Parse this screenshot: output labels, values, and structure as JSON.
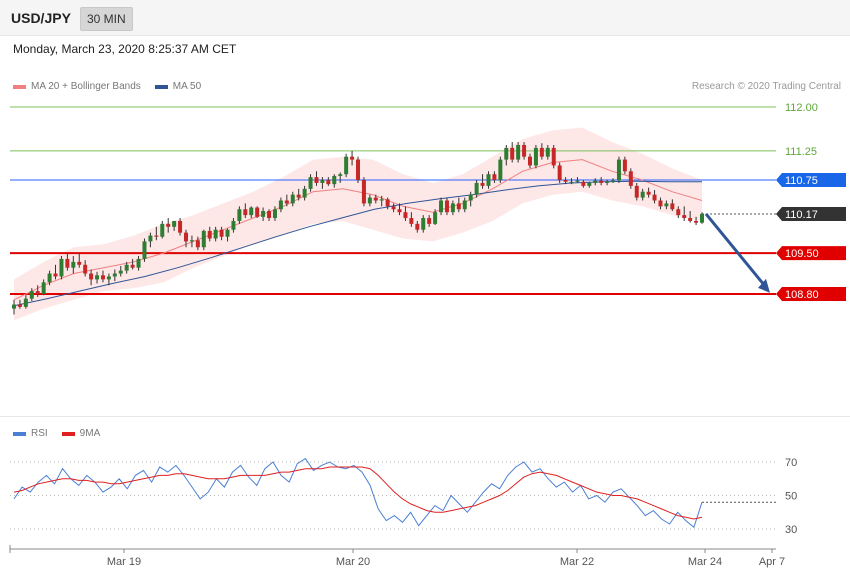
{
  "header": {
    "symbol": "USD/JPY",
    "timeframe": "30 MIN",
    "datetime": "Monday, March 23, 2020 8:25:37 AM CET",
    "credit": "Research © 2020 Trading Central"
  },
  "legend": {
    "main": [
      {
        "label": "MA 20 + Bollinger Bands",
        "color": "#f08080"
      },
      {
        "label": "MA 50",
        "color": "#2f5597"
      }
    ],
    "rsi": [
      {
        "label": "RSI",
        "color": "#4a7fd4"
      },
      {
        "label": "9MA",
        "color": "#e02020"
      }
    ]
  },
  "colors": {
    "up": "#2e7d32",
    "down": "#c62828",
    "resistance": "#e00000",
    "target_line": "#7cc05a",
    "ma50": "#2f5597",
    "ma20": "#f08080",
    "band": "#fde3e3",
    "arrow": "#2f5597",
    "last_price_bg": "#333333",
    "pivot_bg": "#1a66e8"
  },
  "chart_data": [
    {
      "type": "line",
      "title": "USD/JPY 30 MIN",
      "ylim": [
        107.85,
        112.2
      ],
      "x_ticks": [
        "Mar 19",
        "Mar 20",
        "Mar 22",
        "Mar 24",
        "Apr 7"
      ],
      "candles_ohlc": [
        [
          108.55,
          108.7,
          108.45,
          108.62
        ],
        [
          108.62,
          108.7,
          108.55,
          108.58
        ],
        [
          108.58,
          108.78,
          108.55,
          108.72
        ],
        [
          108.72,
          108.9,
          108.68,
          108.85
        ],
        [
          108.85,
          108.95,
          108.75,
          108.8
        ],
        [
          108.8,
          109.05,
          108.78,
          109.0
        ],
        [
          109.0,
          109.2,
          108.95,
          109.15
        ],
        [
          109.15,
          109.3,
          109.05,
          109.1
        ],
        [
          109.1,
          109.45,
          109.05,
          109.4
        ],
        [
          109.4,
          109.5,
          109.2,
          109.25
        ],
        [
          109.25,
          109.45,
          109.15,
          109.35
        ],
        [
          109.35,
          109.5,
          109.25,
          109.3
        ],
        [
          109.3,
          109.38,
          109.1,
          109.15
        ],
        [
          109.15,
          109.22,
          108.95,
          109.05
        ],
        [
          109.05,
          109.18,
          108.98,
          109.12
        ],
        [
          109.12,
          109.2,
          109.0,
          109.05
        ],
        [
          109.05,
          109.15,
          108.95,
          109.1
        ],
        [
          109.1,
          109.22,
          109.02,
          109.15
        ],
        [
          109.15,
          109.28,
          109.1,
          109.2
        ],
        [
          109.2,
          109.35,
          109.15,
          109.3
        ],
        [
          109.3,
          109.4,
          109.22,
          109.25
        ],
        [
          109.25,
          109.45,
          109.2,
          109.4
        ],
        [
          109.4,
          109.75,
          109.35,
          109.7
        ],
        [
          109.7,
          109.85,
          109.6,
          109.8
        ],
        [
          109.8,
          109.95,
          109.72,
          109.78
        ],
        [
          109.78,
          110.05,
          109.75,
          110.0
        ],
        [
          110.0,
          110.1,
          109.85,
          109.95
        ],
        [
          109.95,
          110.05,
          109.88,
          110.05
        ],
        [
          110.05,
          110.1,
          109.8,
          109.85
        ],
        [
          109.85,
          109.9,
          109.6,
          109.7
        ],
        [
          109.7,
          109.8,
          109.6,
          109.72
        ],
        [
          109.72,
          109.78,
          109.55,
          109.6
        ],
        [
          109.6,
          109.9,
          109.55,
          109.88
        ],
        [
          109.88,
          109.95,
          109.7,
          109.75
        ],
        [
          109.75,
          109.95,
          109.7,
          109.9
        ],
        [
          109.9,
          109.95,
          109.72,
          109.78
        ],
        [
          109.78,
          109.92,
          109.7,
          109.9
        ],
        [
          109.9,
          110.1,
          109.85,
          110.05
        ],
        [
          110.05,
          110.3,
          110.0,
          110.25
        ],
        [
          110.25,
          110.35,
          110.1,
          110.15
        ],
        [
          110.15,
          110.3,
          110.1,
          110.28
        ],
        [
          110.28,
          110.3,
          110.1,
          110.12
        ],
        [
          110.12,
          110.28,
          110.05,
          110.22
        ],
        [
          110.22,
          110.25,
          110.05,
          110.1
        ],
        [
          110.1,
          110.3,
          110.05,
          110.25
        ],
        [
          110.25,
          110.45,
          110.2,
          110.4
        ],
        [
          110.4,
          110.5,
          110.3,
          110.35
        ],
        [
          110.35,
          110.55,
          110.3,
          110.5
        ],
        [
          110.5,
          110.6,
          110.4,
          110.45
        ],
        [
          110.45,
          110.65,
          110.4,
          110.6
        ],
        [
          110.6,
          110.85,
          110.55,
          110.8
        ],
        [
          110.8,
          110.9,
          110.65,
          110.7
        ],
        [
          110.7,
          110.8,
          110.6,
          110.75
        ],
        [
          110.75,
          110.8,
          110.65,
          110.68
        ],
        [
          110.68,
          110.85,
          110.62,
          110.82
        ],
        [
          110.82,
          110.88,
          110.7,
          110.85
        ],
        [
          110.85,
          111.2,
          110.8,
          111.15
        ],
        [
          111.15,
          111.25,
          111.0,
          111.1
        ],
        [
          111.1,
          111.15,
          110.7,
          110.75
        ],
        [
          110.75,
          110.8,
          110.3,
          110.35
        ],
        [
          110.35,
          110.5,
          110.3,
          110.45
        ],
        [
          110.45,
          110.5,
          110.35,
          110.4
        ],
        [
          110.4,
          110.48,
          110.3,
          110.42
        ],
        [
          110.42,
          110.45,
          110.25,
          110.3
        ],
        [
          110.3,
          110.35,
          110.2,
          110.25
        ],
        [
          110.25,
          110.35,
          110.15,
          110.2
        ],
        [
          110.2,
          110.3,
          110.05,
          110.1
        ],
        [
          110.1,
          110.2,
          109.95,
          110.0
        ],
        [
          110.0,
          110.05,
          109.85,
          109.9
        ],
        [
          109.9,
          110.15,
          109.85,
          110.1
        ],
        [
          110.1,
          110.15,
          109.95,
          110.0
        ],
        [
          110.0,
          110.25,
          109.98,
          110.2
        ],
        [
          110.2,
          110.45,
          110.15,
          110.4
        ],
        [
          110.4,
          110.45,
          110.15,
          110.2
        ],
        [
          110.2,
          110.4,
          110.15,
          110.35
        ],
        [
          110.35,
          110.45,
          110.2,
          110.25
        ],
        [
          110.25,
          110.45,
          110.2,
          110.4
        ],
        [
          110.4,
          110.55,
          110.3,
          110.5
        ],
        [
          110.5,
          110.75,
          110.45,
          110.7
        ],
        [
          110.7,
          110.85,
          110.6,
          110.65
        ],
        [
          110.65,
          110.9,
          110.6,
          110.85
        ],
        [
          110.85,
          110.9,
          110.7,
          110.75
        ],
        [
          110.75,
          111.15,
          110.7,
          111.1
        ],
        [
          111.1,
          111.35,
          111.0,
          111.3
        ],
        [
          111.3,
          111.4,
          111.05,
          111.1
        ],
        [
          111.1,
          111.4,
          111.05,
          111.35
        ],
        [
          111.35,
          111.4,
          111.1,
          111.15
        ],
        [
          111.15,
          111.2,
          110.95,
          111.0
        ],
        [
          111.0,
          111.35,
          110.95,
          111.3
        ],
        [
          111.3,
          111.38,
          111.1,
          111.15
        ],
        [
          111.15,
          111.35,
          111.1,
          111.3
        ],
        [
          111.3,
          111.35,
          110.95,
          111.0
        ],
        [
          111.0,
          111.05,
          110.7,
          110.75
        ],
        [
          110.75,
          110.8,
          110.68,
          110.72
        ],
        [
          110.72,
          110.78,
          110.68,
          110.72
        ],
        [
          110.72,
          110.8,
          110.7,
          110.74
        ],
        [
          110.72,
          110.75,
          110.62,
          110.65
        ],
        [
          110.65,
          110.72,
          110.62,
          110.7
        ],
        [
          110.7,
          110.78,
          110.66,
          110.74
        ],
        [
          110.74,
          110.8,
          110.66,
          110.7
        ],
        [
          110.7,
          110.76,
          110.66,
          110.72
        ],
        [
          110.72,
          110.78,
          110.7,
          110.74
        ],
        [
          110.74,
          111.15,
          110.7,
          111.1
        ],
        [
          111.1,
          111.15,
          110.85,
          110.9
        ],
        [
          110.9,
          110.95,
          110.6,
          110.65
        ],
        [
          110.65,
          110.7,
          110.4,
          110.45
        ],
        [
          110.45,
          110.6,
          110.4,
          110.55
        ],
        [
          110.55,
          110.62,
          110.45,
          110.5
        ],
        [
          110.5,
          110.58,
          110.35,
          110.4
        ],
        [
          110.4,
          110.45,
          110.25,
          110.3
        ],
        [
          110.3,
          110.4,
          110.25,
          110.35
        ],
        [
          110.35,
          110.42,
          110.22,
          110.25
        ],
        [
          110.25,
          110.3,
          110.1,
          110.15
        ],
        [
          110.15,
          110.3,
          110.05,
          110.1
        ],
        [
          110.1,
          110.22,
          110.02,
          110.05
        ],
        [
          110.05,
          110.12,
          109.98,
          110.02
        ],
        [
          110.02,
          110.2,
          110.0,
          110.17
        ]
      ],
      "ma50": [
        108.6,
        108.72,
        108.85,
        108.98,
        109.1,
        109.25,
        109.42,
        109.6,
        109.78,
        109.95,
        110.1,
        110.25,
        110.35,
        110.43,
        110.5,
        110.58,
        110.65,
        110.7,
        110.72,
        110.73,
        110.72,
        110.72
      ],
      "ma20": [
        108.7,
        108.95,
        109.15,
        109.25,
        109.35,
        109.5,
        109.7,
        109.9,
        110.1,
        110.3,
        110.55,
        110.6,
        110.5,
        110.3,
        110.2,
        110.35,
        110.6,
        110.9,
        111.05,
        111.1,
        110.9,
        110.75,
        110.55,
        110.4
      ],
      "levels": [
        {
          "label": "112.00",
          "value": 112.0,
          "kind": "target"
        },
        {
          "label": "111.25",
          "value": 111.25,
          "kind": "target"
        },
        {
          "label": "110.75",
          "value": 110.75,
          "kind": "pivot"
        },
        {
          "label": "110.17",
          "value": 110.17,
          "kind": "last"
        },
        {
          "label": "109.50",
          "value": 109.5,
          "kind": "support"
        },
        {
          "label": "108.80",
          "value": 108.8,
          "kind": "support"
        }
      ]
    },
    {
      "type": "line",
      "title": "RSI",
      "ylim": [
        20,
        75
      ],
      "y_ticks": [
        "70",
        "50",
        "30"
      ],
      "series": [
        {
          "name": "RSI",
          "values": [
            48,
            55,
            52,
            58,
            62,
            57,
            66,
            60,
            56,
            62,
            58,
            52,
            55,
            60,
            54,
            62,
            65,
            58,
            67,
            64,
            68,
            62,
            55,
            48,
            52,
            60,
            55,
            64,
            68,
            61,
            56,
            66,
            70,
            62,
            58,
            69,
            72,
            65,
            68,
            70,
            67,
            66,
            68,
            64,
            56,
            42,
            35,
            38,
            34,
            40,
            32,
            38,
            44,
            41,
            50,
            45,
            40,
            46,
            52,
            57,
            54,
            62,
            67,
            70,
            64,
            66,
            60,
            55,
            58,
            52,
            56,
            48,
            50,
            46,
            52,
            54,
            49,
            44,
            38,
            41,
            36,
            33,
            40,
            35,
            31,
            46
          ]
        },
        {
          "name": "9MA",
          "values": [
            52,
            53,
            55,
            57,
            58,
            59,
            60,
            60,
            59,
            59,
            58,
            58,
            57,
            57,
            58,
            59,
            60,
            61,
            62,
            62,
            63,
            63,
            62,
            61,
            60,
            60,
            60,
            61,
            62,
            62,
            62,
            62,
            63,
            64,
            64,
            65,
            66,
            66,
            66,
            67,
            67,
            67,
            67,
            67,
            66,
            62,
            57,
            52,
            48,
            45,
            43,
            41,
            40,
            40,
            41,
            42,
            43,
            44,
            46,
            48,
            50,
            53,
            57,
            61,
            63,
            64,
            63,
            62,
            60,
            58,
            56,
            54,
            52,
            51,
            50,
            50,
            49,
            48,
            46,
            44,
            42,
            40,
            38,
            37,
            36,
            37
          ]
        }
      ]
    }
  ]
}
